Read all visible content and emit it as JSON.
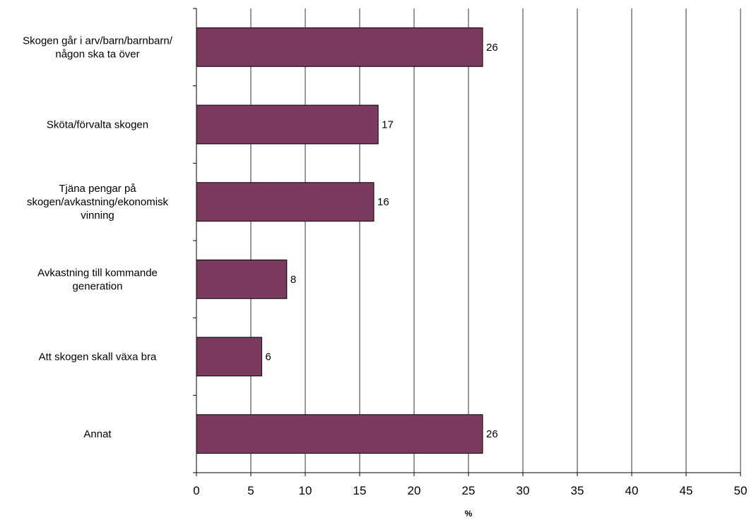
{
  "chart_data": {
    "type": "bar",
    "orientation": "horizontal",
    "categories": [
      [
        "Skogen går i arv/barn/barnbarn/",
        "någon ska ta över"
      ],
      [
        "Sköta/förvalta skogen"
      ],
      [
        "Tjäna pengar på",
        "skogen/avkastning/ekonomisk",
        "vinning"
      ],
      [
        "Avkastning till kommande",
        "generation"
      ],
      [
        "Att skogen skall växa bra"
      ],
      [
        "Annat"
      ]
    ],
    "values": [
      26.3,
      16.7,
      16.3,
      8.3,
      6.0,
      26.3
    ],
    "data_labels": [
      "26",
      "17",
      "16",
      "8",
      "6",
      "26"
    ],
    "xlabel": "%",
    "ylabel": "",
    "title": "",
    "xlim": [
      0,
      50
    ],
    "xticks": [
      0,
      5,
      10,
      15,
      20,
      25,
      30,
      35,
      40,
      45,
      50
    ],
    "grid": "vertical",
    "bar_color": "#7a3b5e",
    "bar_edge_color": "#000000"
  }
}
